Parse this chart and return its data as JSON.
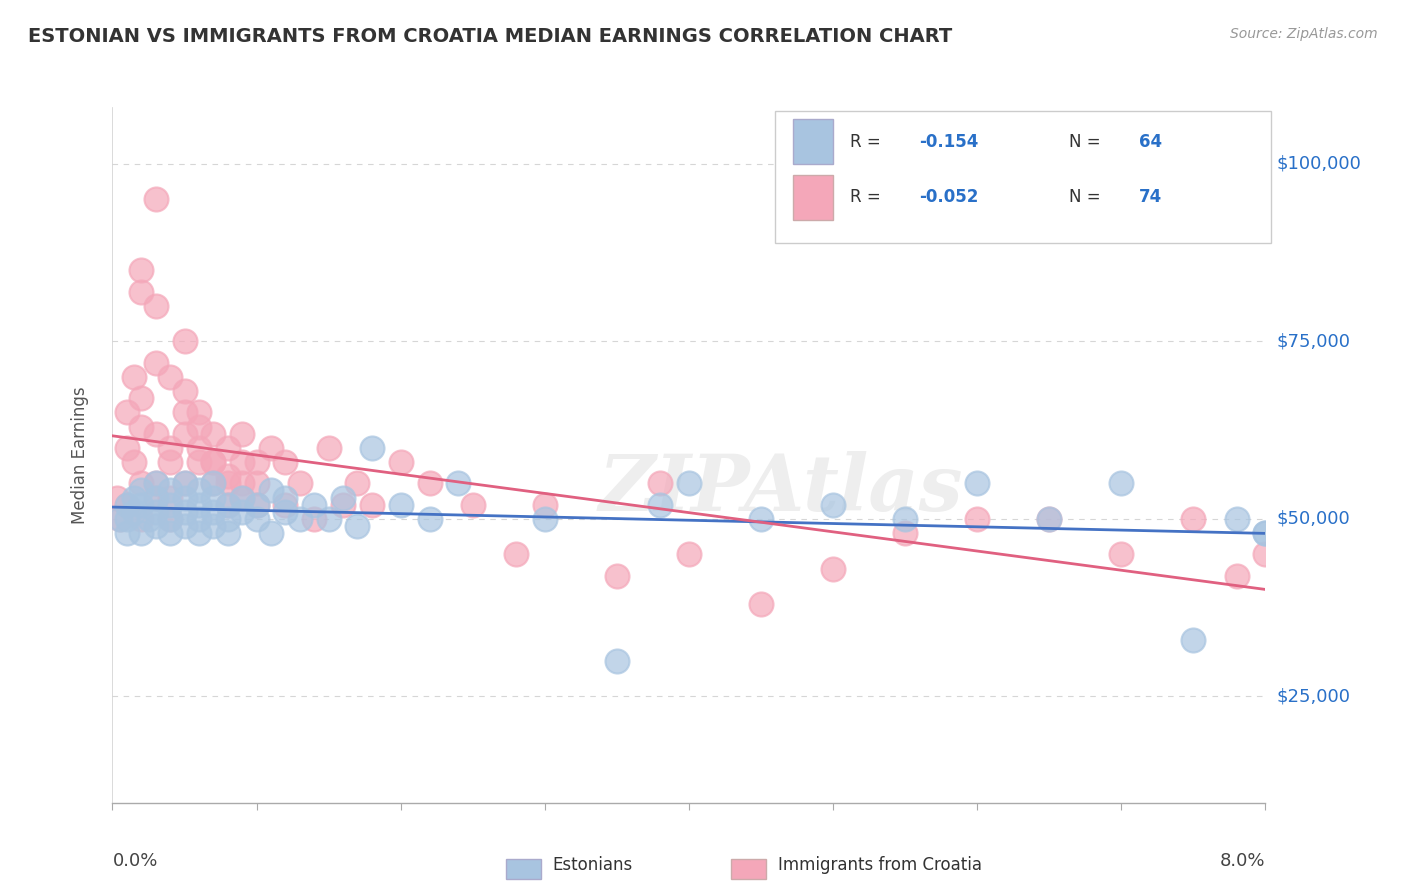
{
  "title": "ESTONIAN VS IMMIGRANTS FROM CROATIA MEDIAN EARNINGS CORRELATION CHART",
  "source": "Source: ZipAtlas.com",
  "ylabel": "Median Earnings",
  "watermark": "ZIPAtlas",
  "xlim": [
    0.0,
    0.08
  ],
  "ylim": [
    10000,
    108000
  ],
  "yticks": [
    25000,
    50000,
    75000,
    100000
  ],
  "ytick_labels": [
    "$25,000",
    "$50,000",
    "$75,000",
    "$100,000"
  ],
  "blue_color": "#a8c4e0",
  "pink_color": "#f4a7b9",
  "blue_line_color": "#4472c4",
  "pink_line_color": "#e06080",
  "title_color": "#333333",
  "axis_label_color": "#555555",
  "ytick_color": "#2970c8",
  "source_color": "#999999",
  "background_color": "#ffffff",
  "est_x": [
    0.0005,
    0.001,
    0.001,
    0.001,
    0.0015,
    0.0015,
    0.002,
    0.002,
    0.002,
    0.0025,
    0.003,
    0.003,
    0.003,
    0.003,
    0.004,
    0.004,
    0.004,
    0.004,
    0.005,
    0.005,
    0.005,
    0.005,
    0.006,
    0.006,
    0.006,
    0.006,
    0.007,
    0.007,
    0.007,
    0.007,
    0.008,
    0.008,
    0.008,
    0.009,
    0.009,
    0.01,
    0.01,
    0.011,
    0.011,
    0.012,
    0.012,
    0.013,
    0.014,
    0.015,
    0.016,
    0.017,
    0.018,
    0.02,
    0.022,
    0.024,
    0.03,
    0.035,
    0.038,
    0.04,
    0.045,
    0.05,
    0.055,
    0.06,
    0.065,
    0.07,
    0.075,
    0.078,
    0.08,
    0.08
  ],
  "est_y": [
    50000,
    52000,
    50000,
    48000,
    51000,
    53000,
    54000,
    48000,
    52000,
    50000,
    53000,
    49000,
    55000,
    51000,
    50000,
    52000,
    48000,
    54000,
    51000,
    53000,
    49000,
    55000,
    50000,
    52000,
    48000,
    54000,
    51000,
    53000,
    49000,
    55000,
    50000,
    52000,
    48000,
    53000,
    51000,
    50000,
    52000,
    48000,
    54000,
    51000,
    53000,
    50000,
    52000,
    50000,
    53000,
    49000,
    60000,
    52000,
    50000,
    55000,
    50000,
    30000,
    52000,
    55000,
    50000,
    52000,
    50000,
    55000,
    50000,
    55000,
    33000,
    50000,
    48000,
    48000
  ],
  "imm_x": [
    0.0003,
    0.0005,
    0.001,
    0.001,
    0.001,
    0.0015,
    0.0015,
    0.002,
    0.002,
    0.002,
    0.002,
    0.003,
    0.003,
    0.003,
    0.003,
    0.004,
    0.004,
    0.004,
    0.004,
    0.005,
    0.005,
    0.005,
    0.005,
    0.006,
    0.006,
    0.006,
    0.007,
    0.007,
    0.007,
    0.008,
    0.008,
    0.008,
    0.009,
    0.009,
    0.009,
    0.01,
    0.01,
    0.01,
    0.011,
    0.012,
    0.012,
    0.013,
    0.014,
    0.015,
    0.016,
    0.017,
    0.018,
    0.02,
    0.022,
    0.025,
    0.028,
    0.03,
    0.035,
    0.038,
    0.04,
    0.045,
    0.05,
    0.055,
    0.06,
    0.065,
    0.07,
    0.075,
    0.078,
    0.08,
    0.003,
    0.004,
    0.005,
    0.006,
    0.007,
    0.008,
    0.009,
    0.002,
    0.002,
    0.003
  ],
  "imm_y": [
    53000,
    50000,
    65000,
    52000,
    60000,
    58000,
    70000,
    50000,
    63000,
    55000,
    67000,
    95000,
    72000,
    55000,
    62000,
    50000,
    60000,
    53000,
    58000,
    75000,
    68000,
    62000,
    55000,
    65000,
    58000,
    60000,
    55000,
    62000,
    58000,
    55000,
    60000,
    52000,
    58000,
    55000,
    62000,
    55000,
    58000,
    52000,
    60000,
    52000,
    58000,
    55000,
    50000,
    60000,
    52000,
    55000,
    52000,
    58000,
    55000,
    52000,
    45000,
    52000,
    42000,
    55000,
    45000,
    38000,
    43000,
    48000,
    50000,
    50000,
    45000,
    50000,
    42000,
    45000,
    80000,
    70000,
    65000,
    63000,
    58000,
    56000,
    53000,
    82000,
    85000,
    53000
  ]
}
